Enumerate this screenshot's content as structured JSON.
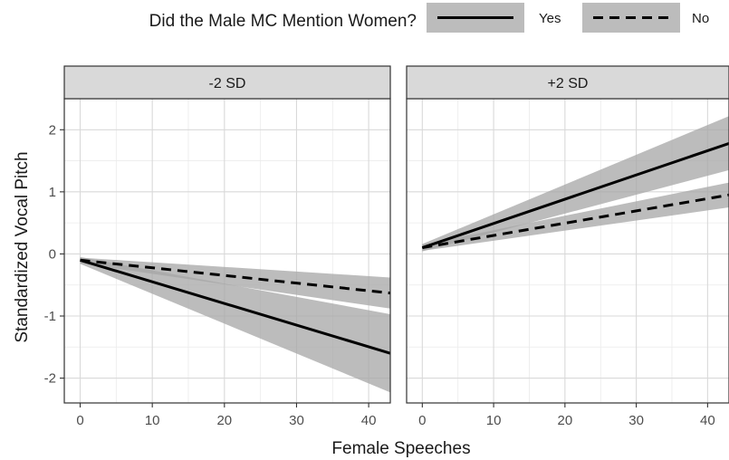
{
  "chart_data": {
    "type": "line",
    "xlabel": "Female Speeches",
    "ylabel": "Standardized Vocal Pitch",
    "xlim": [
      -2.2,
      43
    ],
    "ylim": [
      -2.4,
      2.5
    ],
    "x_ticks": [
      0,
      10,
      20,
      30,
      40
    ],
    "y_ticks": [
      -2,
      -1,
      0,
      1,
      2
    ],
    "grid": true,
    "legend": {
      "title": "Did the Male MC Mention Women?",
      "position": "top",
      "entries": [
        {
          "label": "Yes",
          "linestyle": "solid"
        },
        {
          "label": "No",
          "linestyle": "dashed"
        }
      ]
    },
    "panels": [
      {
        "label": "-2 SD",
        "series": [
          {
            "name": "Yes",
            "linestyle": "solid",
            "x": [
              0,
              43
            ],
            "y": [
              -0.1,
              -1.6
            ],
            "ci_lower": [
              -0.16,
              -2.23
            ],
            "ci_upper": [
              -0.05,
              -0.97
            ]
          },
          {
            "name": "No",
            "linestyle": "dashed",
            "x": [
              0,
              43
            ],
            "y": [
              -0.1,
              -0.63
            ],
            "ci_lower": [
              -0.15,
              -0.88
            ],
            "ci_upper": [
              -0.06,
              -0.38
            ]
          }
        ]
      },
      {
        "label": "+2 SD",
        "series": [
          {
            "name": "Yes",
            "linestyle": "solid",
            "x": [
              0,
              43
            ],
            "y": [
              0.1,
              1.78
            ],
            "ci_lower": [
              0.04,
              1.35
            ],
            "ci_upper": [
              0.16,
              2.22
            ]
          },
          {
            "name": "No",
            "linestyle": "dashed",
            "x": [
              0,
              43
            ],
            "y": [
              0.1,
              0.95
            ],
            "ci_lower": [
              0.05,
              0.75
            ],
            "ci_upper": [
              0.15,
              1.15
            ]
          }
        ]
      }
    ]
  }
}
